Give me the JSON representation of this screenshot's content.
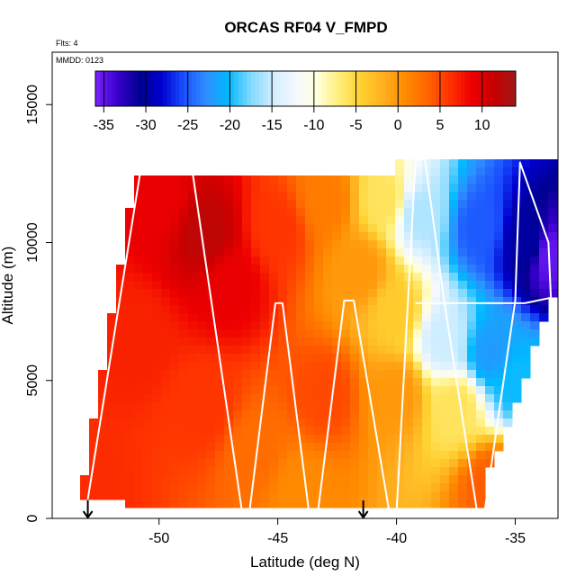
{
  "chart_data": {
    "type": "heatmap",
    "title": "ORCAS RF04 V_FMPD",
    "annotations": [
      "Flts: 4",
      "MMDD: 0123"
    ],
    "xlabel": "Latitude (deg N)",
    "ylabel": "Altitude (m)",
    "xlim": [
      -54.5,
      -33.2
    ],
    "ylim": [
      0,
      16900
    ],
    "xticks": [
      -50,
      -45,
      -40,
      -35
    ],
    "xtick_labels": [
      "-50",
      "-45",
      "-40",
      "-35"
    ],
    "yticks": [
      0,
      5000,
      10000,
      15000
    ],
    "ytick_labels": [
      "0",
      "5000",
      "10000",
      "15000"
    ],
    "colorbar": {
      "ticks": [
        -35,
        -30,
        -25,
        -20,
        -15,
        -10,
        -5,
        0,
        5,
        10
      ],
      "tick_labels": [
        "-35",
        "-30",
        "-25",
        "-20",
        "-15",
        "-10",
        "-5",
        "0",
        "5",
        "10"
      ],
      "range": [
        -36,
        14
      ],
      "colors": [
        "#7b22ff",
        "#3a00cc",
        "#000090",
        "#0000d0",
        "#1a4fff",
        "#2f8fff",
        "#00b8ff",
        "#7fd8ff",
        "#cfeeff",
        "#f4f8ff",
        "#ffffe0",
        "#ffef7a",
        "#ffd030",
        "#ffb020",
        "#ff8c00",
        "#ff6600",
        "#ff3300",
        "#ee0000",
        "#c80000",
        "#a01818"
      ]
    },
    "field": {
      "description_units": "V_FMPD (m/s)",
      "lat_range": [
        -53.3,
        -33.4
      ],
      "alt_range": [
        300,
        13000
      ],
      "anchor_points": [
        {
          "lat": -53,
          "alt": 1000,
          "value": 6.5
        },
        {
          "lat": -50,
          "alt": 11500,
          "value": 9
        },
        {
          "lat": -48,
          "alt": 10300,
          "value": 12
        },
        {
          "lat": -47,
          "alt": 8500,
          "value": 9
        },
        {
          "lat": -45,
          "alt": 10500,
          "value": 6
        },
        {
          "lat": -43,
          "alt": 11500,
          "value": 2
        },
        {
          "lat": -40.5,
          "alt": 11500,
          "value": -6
        },
        {
          "lat": -39,
          "alt": 11000,
          "value": -16
        },
        {
          "lat": -36.5,
          "alt": 10500,
          "value": -25
        },
        {
          "lat": -34.5,
          "alt": 10000,
          "value": -30
        },
        {
          "lat": -33.5,
          "alt": 9500,
          "value": -35
        },
        {
          "lat": -40,
          "alt": 7500,
          "value": -4
        },
        {
          "lat": -38,
          "alt": 6500,
          "value": -15
        },
        {
          "lat": -36,
          "alt": 6000,
          "value": -22
        },
        {
          "lat": -35,
          "alt": 5000,
          "value": -20
        },
        {
          "lat": -37.5,
          "alt": 4000,
          "value": -6
        },
        {
          "lat": -40,
          "alt": 4500,
          "value": 0
        },
        {
          "lat": -43,
          "alt": 4500,
          "value": 5
        },
        {
          "lat": -46,
          "alt": 2500,
          "value": 3
        },
        {
          "lat": -44,
          "alt": 1000,
          "value": 1
        },
        {
          "lat": -48,
          "alt": 4000,
          "value": 6
        },
        {
          "lat": -51,
          "alt": 6500,
          "value": 7
        },
        {
          "lat": -41.5,
          "alt": 9000,
          "value": 0
        },
        {
          "lat": -36,
          "alt": 1200,
          "value": 4
        }
      ]
    },
    "flight_track": {
      "lat": [
        -53,
        -50.8,
        -48.6,
        -46.5,
        -46.2,
        -45.1,
        -44.8,
        -43.7,
        -43.3,
        -42.2,
        -41.8,
        -40.3,
        -40.0,
        -39.2,
        -38.8,
        -38.0,
        -36.6,
        -36.3,
        -35.0,
        -34.8,
        -33.6,
        -33.5,
        -34.6,
        -39.2
      ],
      "alt": [
        700,
        12500,
        12600,
        200,
        200,
        7800,
        7800,
        300,
        300,
        7900,
        7900,
        200,
        200,
        13000,
        13000,
        7900,
        200,
        200,
        7900,
        12900,
        10000,
        8000,
        7800,
        7800
      ]
    },
    "markers": [
      {
        "type": "arrow-down",
        "lat": -53.0,
        "alt": 0
      },
      {
        "type": "arrow-down",
        "lat": -41.4,
        "alt": 0
      }
    ]
  }
}
